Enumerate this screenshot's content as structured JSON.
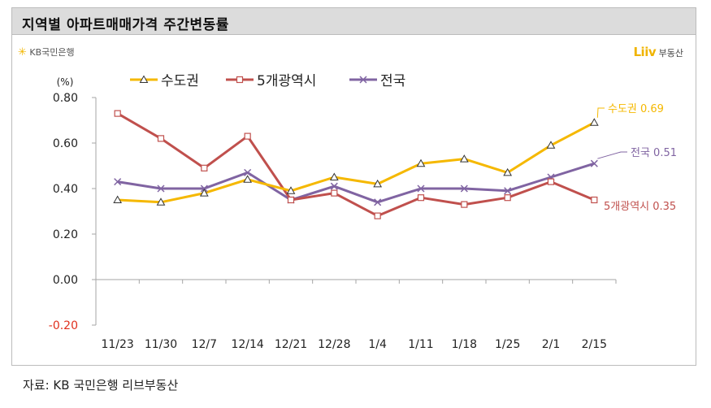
{
  "header": {
    "title": "지역별 아파트매매가격  주간변동률"
  },
  "logos": {
    "kb": "KB국민은행",
    "liiv_word": "Liiv",
    "liiv_suffix": "부동산"
  },
  "footer": {
    "source": "자료: KB 국민은행 리브부동산"
  },
  "chart_data": {
    "type": "line",
    "title": "지역별 아파트매매가격  주간변동률",
    "ylabel": "(%)",
    "xlabel": "",
    "ylim": [
      -0.2,
      0.8
    ],
    "y_ticks": [
      "0.80",
      "0.60",
      "0.40",
      "0.20",
      "0.00",
      "-0.20"
    ],
    "y_tick_values": [
      0.8,
      0.6,
      0.4,
      0.2,
      0.0,
      -0.2
    ],
    "categories": [
      "11/23",
      "11/30",
      "12/7",
      "12/14",
      "12/21",
      "12/28",
      "1/4",
      "1/11",
      "1/18",
      "1/25",
      "2/1",
      "2/15"
    ],
    "legend_position": "top",
    "grid": false,
    "series": [
      {
        "name": "수도권",
        "color": "#f5b800",
        "marker": "triangle",
        "values": [
          0.35,
          0.34,
          0.38,
          0.44,
          0.39,
          0.45,
          0.42,
          0.51,
          0.53,
          0.47,
          0.59,
          0.69
        ],
        "end_label": "수도권 0.69"
      },
      {
        "name": "5개광역시",
        "color": "#c0504d",
        "marker": "square",
        "values": [
          0.73,
          0.62,
          0.49,
          0.63,
          0.35,
          0.38,
          0.28,
          0.36,
          0.33,
          0.36,
          0.43,
          0.35
        ],
        "end_label": "5개광역시 0.35"
      },
      {
        "name": "전국",
        "color": "#8064a2",
        "marker": "x",
        "values": [
          0.43,
          0.4,
          0.4,
          0.47,
          0.35,
          0.41,
          0.34,
          0.4,
          0.4,
          0.39,
          0.45,
          0.51
        ],
        "end_label": "전국 0.51"
      }
    ]
  }
}
